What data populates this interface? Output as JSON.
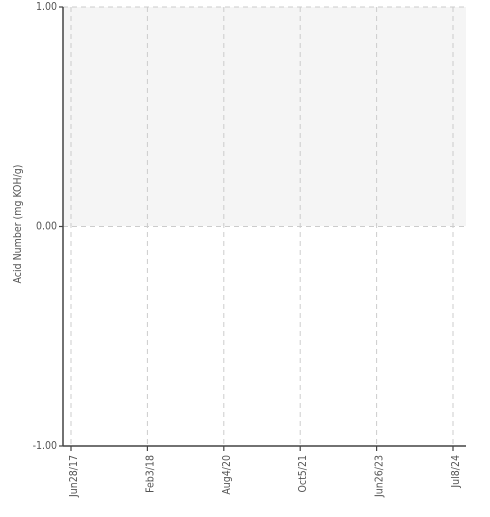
{
  "chart_data": {
    "type": "line",
    "title": "",
    "xlabel": "",
    "ylabel": "Acid Number (mg KOH/g)",
    "y_ticks": [
      "1.00",
      "0.00",
      "-1.00"
    ],
    "ylim": [
      -1,
      1
    ],
    "x_ticks": [
      "Jun28/17",
      "Feb3/18",
      "Aug4/20",
      "Oct5/21",
      "Jun26/23",
      "Jul8/24"
    ],
    "series": [],
    "grid": true,
    "band": {
      "from": 0,
      "to": 1,
      "color": "#f5f5f5"
    },
    "legend": "none"
  }
}
